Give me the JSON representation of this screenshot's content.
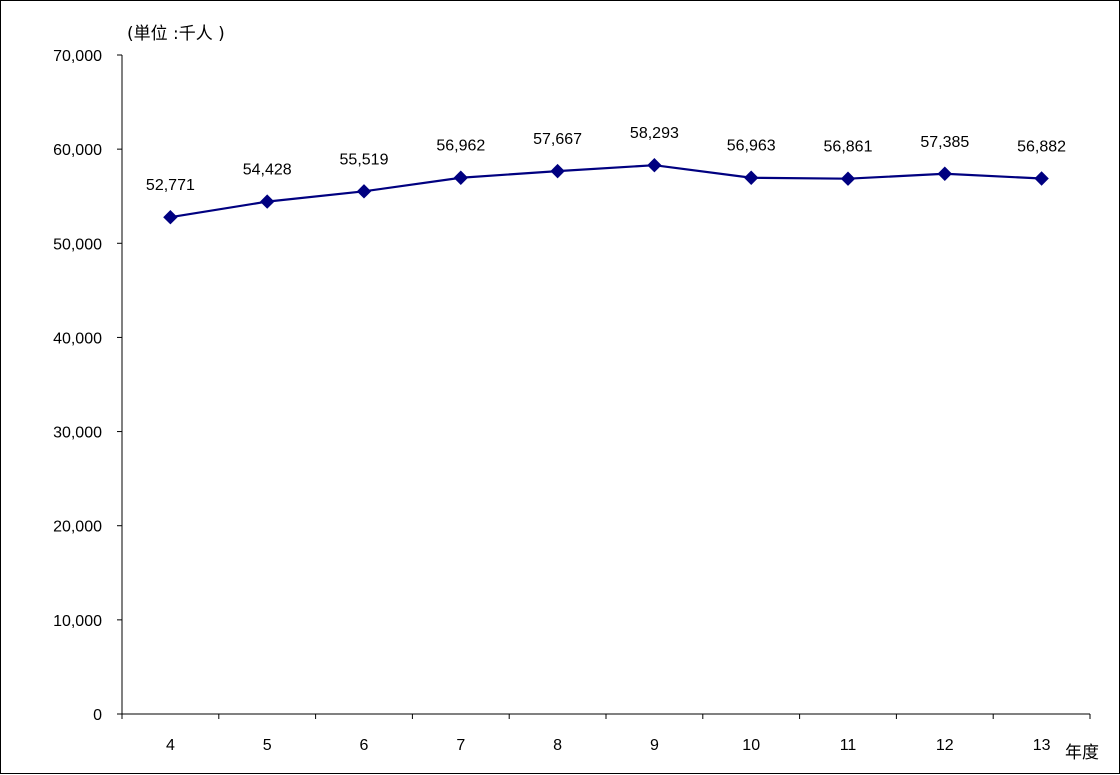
{
  "chart_data": {
    "type": "line",
    "title": "",
    "unit_label": "(単位 :千人 )",
    "xlabel": "年度",
    "ylabel": "",
    "categories": [
      "4",
      "5",
      "6",
      "7",
      "8",
      "9",
      "10",
      "11",
      "12",
      "13"
    ],
    "series": [
      {
        "values": [
          52771,
          54428,
          55519,
          56962,
          57667,
          58293,
          56963,
          56861,
          57385,
          56882
        ],
        "data_labels": [
          "52,771",
          "54,428",
          "55,519",
          "56,962",
          "57,667",
          "58,293",
          "56,963",
          "56,861",
          "57,385",
          "56,882"
        ],
        "color": "#000080",
        "marker": "diamond"
      }
    ],
    "ylim": [
      0,
      70000
    ],
    "yticks": [
      0,
      10000,
      20000,
      30000,
      40000,
      50000,
      60000,
      70000
    ],
    "ytick_labels": [
      "0",
      "10,000",
      "20,000",
      "30,000",
      "40,000",
      "50,000",
      "60,000",
      "70,000"
    ],
    "grid": false,
    "legend": "none"
  }
}
